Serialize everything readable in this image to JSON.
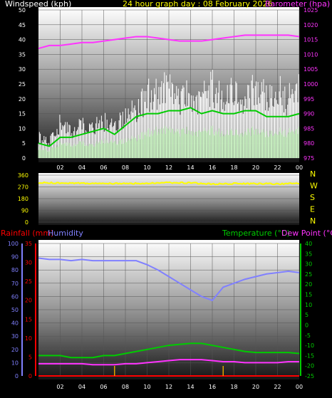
{
  "title": "24 hour graph day : 08 February 2026",
  "colors": {
    "wind": "#ffffff",
    "wind_light": "#c8f5c0",
    "wind_avg": "#00cc00",
    "barometer": "#ff33ff",
    "direction": "#ffff00",
    "compass": "#ffff00",
    "rain": "#ff0000",
    "rain_axis": "#ff0000",
    "humidity": "#8080ff",
    "temperature": "#00cc00",
    "dewpoint": "#ff33ff",
    "hours": "#ffffff"
  },
  "panels": {
    "wind": {
      "left_label": "Windspeed (kph)",
      "right_label": "Barometer (hpa)"
    },
    "direction": {
      "compass": [
        "N",
        "W",
        "S",
        "E",
        "N"
      ]
    },
    "climate": {
      "rain_label": "Rainfall (mm)",
      "humidity_label": "Humidity",
      "temp_label": "Temperature (°C)",
      "dew_label": "Dew Point (°C)"
    }
  },
  "chart_data": [
    {
      "type": "line",
      "panel": "wind",
      "x_ticks": [
        "02",
        "04",
        "06",
        "08",
        "10",
        "12",
        "14",
        "16",
        "18",
        "20",
        "22",
        "00"
      ],
      "x": [
        0,
        1,
        2,
        3,
        4,
        5,
        6,
        7,
        8,
        9,
        10,
        11,
        12,
        13,
        14,
        15,
        16,
        17,
        18,
        19,
        20,
        21,
        22,
        23,
        24
      ],
      "ylim": [
        0,
        50
      ],
      "yticks": [
        0,
        5,
        10,
        15,
        20,
        25,
        30,
        35,
        40,
        45,
        50
      ],
      "y2lim": [
        975,
        1025
      ],
      "y2ticks": [
        975,
        980,
        985,
        990,
        995,
        1000,
        1005,
        1010,
        1015,
        1020,
        1025
      ],
      "series": [
        {
          "key": "gust",
          "values": [
            9,
            7,
            15,
            11,
            14,
            13,
            16,
            13,
            18,
            21,
            27,
            28,
            30,
            24,
            28,
            25,
            30,
            26,
            28,
            24,
            30,
            28,
            31,
            25,
            30
          ]
        },
        {
          "key": "low",
          "values": [
            4,
            3,
            6,
            5,
            6,
            5,
            7,
            6,
            7,
            8,
            10,
            11,
            11,
            10,
            11,
            10,
            11,
            10,
            10,
            10,
            11,
            10,
            11,
            10,
            11
          ]
        },
        {
          "key": "average",
          "values": [
            5,
            4,
            7,
            7,
            8,
            9,
            10,
            8,
            11,
            14,
            15,
            15,
            16,
            16,
            17,
            15,
            16,
            15,
            15,
            16,
            16,
            14,
            14,
            14,
            15
          ]
        },
        {
          "key": "barometer",
          "axis": "right",
          "values": [
            1012,
            1013,
            1013,
            1013.5,
            1014,
            1014,
            1014.5,
            1015,
            1015.5,
            1016,
            1016,
            1015.5,
            1015,
            1014.5,
            1014.5,
            1014.5,
            1015,
            1015.5,
            1016,
            1016.5,
            1016.5,
            1016.5,
            1016.5,
            1016.5,
            1016
          ]
        }
      ]
    },
    {
      "type": "line",
      "panel": "direction",
      "x": [
        0,
        2,
        4,
        6,
        8,
        10,
        12,
        14,
        16,
        18,
        20,
        22,
        24
      ],
      "ylim": [
        0,
        360
      ],
      "yticks": [
        0,
        90,
        180,
        270,
        360
      ],
      "series": [
        {
          "key": "direction",
          "values": [
            303,
            300,
            298,
            296,
            296,
            298,
            302,
            301,
            292,
            296,
            295,
            293,
            296
          ]
        }
      ]
    },
    {
      "type": "line",
      "panel": "climate",
      "x_ticks": [
        "02",
        "04",
        "06",
        "08",
        "10",
        "12",
        "14",
        "16",
        "18",
        "20",
        "22",
        "00"
      ],
      "x": [
        0,
        1,
        2,
        3,
        4,
        5,
        6,
        7,
        8,
        9,
        10,
        11,
        12,
        13,
        14,
        15,
        16,
        17,
        18,
        19,
        20,
        21,
        22,
        23,
        24
      ],
      "rain_lim": [
        0,
        35
      ],
      "rain_ticks": [
        0,
        5,
        10,
        15,
        20,
        25,
        30,
        35
      ],
      "humidity_lim": [
        0,
        100
      ],
      "humidity_ticks": [
        0,
        10,
        20,
        30,
        40,
        50,
        60,
        70,
        80,
        90,
        100
      ],
      "temp_lim": [
        -25,
        40
      ],
      "temp_ticks": [
        -25,
        -20,
        -15,
        -10,
        -5,
        0,
        5,
        10,
        15,
        20,
        25,
        30,
        35,
        40
      ],
      "series": [
        {
          "key": "humidity",
          "values": [
            89,
            88,
            88,
            87,
            88,
            87,
            87,
            87,
            87,
            87,
            84,
            80,
            75,
            70,
            65,
            60,
            57,
            67,
            70,
            73,
            75,
            77,
            78,
            79,
            78
          ]
        },
        {
          "key": "temperature",
          "values": [
            -15,
            -15,
            -15,
            -16,
            -16,
            -16,
            -15,
            -15,
            -14,
            -13,
            -12,
            -11,
            -10,
            -9.5,
            -9,
            -9,
            -10,
            -11,
            -12,
            -13,
            -13.5,
            -13.5,
            -13.5,
            -13.5,
            -14
          ]
        },
        {
          "key": "dewpoint",
          "values": [
            -19,
            -19,
            -19,
            -19,
            -19,
            -19.5,
            -19.5,
            -19.5,
            -19,
            -19,
            -18.5,
            -18,
            -17.5,
            -17,
            -17,
            -17,
            -17.5,
            -18,
            -18,
            -18.5,
            -18.5,
            -18.5,
            -18.5,
            -18,
            -18
          ]
        },
        {
          "key": "rain",
          "values": [
            0,
            0,
            0,
            0,
            0,
            0,
            0,
            0,
            0,
            0,
            0,
            0,
            0,
            0,
            0,
            0,
            0,
            0,
            0,
            0,
            0,
            0,
            0,
            0,
            0
          ]
        }
      ],
      "markers": [
        7,
        17
      ]
    }
  ]
}
